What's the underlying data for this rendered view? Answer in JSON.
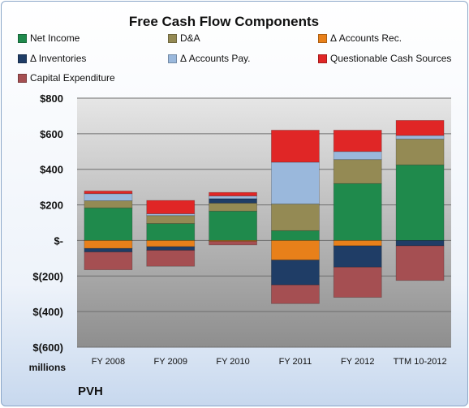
{
  "chart_data": {
    "type": "bar",
    "stacked": true,
    "title": "Free Cash Flow Components",
    "categories": [
      "FY 2008",
      "FY 2009",
      "FY 2010",
      "FY 2011",
      "FY 2012",
      "TTM 10-2012"
    ],
    "ylim": [
      -600,
      800
    ],
    "yticks": [
      -600,
      -400,
      -200,
      0,
      200,
      400,
      600,
      800
    ],
    "ytick_labels": [
      "$(600)",
      "$(400)",
      "$(200)",
      "$-",
      "$200",
      "$400",
      "$600",
      "$800"
    ],
    "unit_label": "millions",
    "grid": true,
    "legend_position": "top",
    "series": [
      {
        "name": "Net Income",
        "color": "#1f8a4c",
        "values": [
          183,
          95,
          165,
          55,
          320,
          425
        ]
      },
      {
        "name": "D&A",
        "color": "#948a54",
        "values": [
          40,
          45,
          45,
          150,
          135,
          145
        ]
      },
      {
        "name": "Δ Accounts Rec.",
        "color": "#e8801a",
        "values": [
          -45,
          -35,
          -5,
          -110,
          -30,
          0
        ]
      },
      {
        "name": "Δ Inventories",
        "color": "#1f3d66",
        "values": [
          -20,
          -20,
          25,
          -140,
          -120,
          -30
        ]
      },
      {
        "name": "Δ Accounts Pay.",
        "color": "#9ab8dc",
        "values": [
          40,
          10,
          15,
          235,
          45,
          20
        ]
      },
      {
        "name": "Questionable Cash Sources",
        "color": "#e02626",
        "values": [
          15,
          75,
          20,
          180,
          120,
          85
        ]
      },
      {
        "name": "Capital Expenditure",
        "color": "#a54f52",
        "values": [
          -100,
          -90,
          -20,
          -105,
          -170,
          -195
        ]
      }
    ]
  },
  "company": "PVH"
}
